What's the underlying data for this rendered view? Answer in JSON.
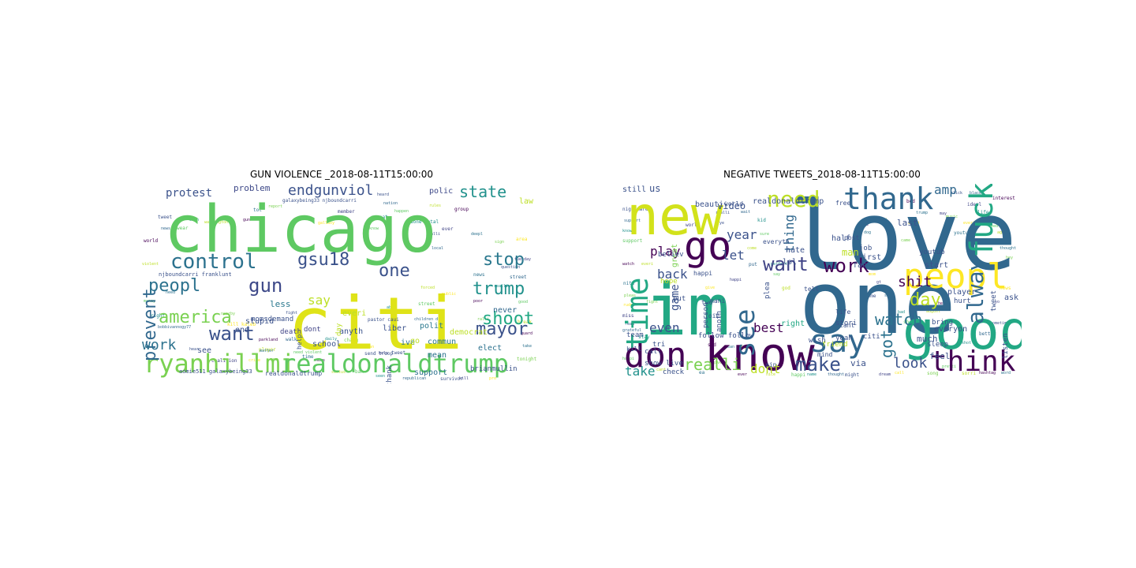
{
  "panels": [
    {
      "title": "GUN VIOLENCE _2018-08-11T15:00:00",
      "words": [
        {
          "t": "chicago",
          "c": "#5ec962"
        },
        {
          "t": "citi",
          "c": "#dfe318"
        },
        {
          "t": "ryanhillmi",
          "c": "#7ad151"
        },
        {
          "t": "realdonaldtrump",
          "c": "#5ec962"
        },
        {
          "t": "control",
          "c": "#2c728e"
        },
        {
          "t": "prevent",
          "c": "#31688e"
        },
        {
          "t": "gsu18",
          "c": "#3b528b"
        },
        {
          "t": "endgunviol",
          "c": "#3b528b"
        },
        {
          "t": "protest",
          "c": "#3b528b"
        },
        {
          "t": "state",
          "c": "#21918c"
        },
        {
          "t": "stop",
          "c": "#2a788e"
        },
        {
          "t": "trump",
          "c": "#21918c"
        },
        {
          "t": "shoot",
          "c": "#22a884"
        },
        {
          "t": "mayor",
          "c": "#3b528b"
        },
        {
          "t": "america",
          "c": "#7ad151"
        },
        {
          "t": "peopl",
          "c": "#2c728e"
        },
        {
          "t": "gun",
          "c": "#3e4989"
        },
        {
          "t": "want",
          "c": "#3b528b"
        },
        {
          "t": "work",
          "c": "#2c728e"
        },
        {
          "t": "one",
          "c": "#3b528b"
        },
        {
          "t": "say",
          "c": "#bddf26"
        },
        {
          "t": "problem",
          "c": "#3e4989"
        },
        {
          "t": "polic",
          "c": "#3e4989"
        },
        {
          "t": "law",
          "c": "#bddf26"
        },
        {
          "t": "less",
          "c": "#2a788e"
        },
        {
          "t": "stupid",
          "c": "#3b528b"
        },
        {
          "t": "dont",
          "c": "#414487"
        },
        {
          "t": "liber",
          "c": "#3b528b"
        },
        {
          "t": "commun",
          "c": "#2a788e"
        },
        {
          "t": "democrat",
          "c": "#bddf26"
        },
        {
          "t": "polit",
          "c": "#2a788e"
        },
        {
          "t": "school",
          "c": "#3b528b"
        },
        {
          "t": "anyth",
          "c": "#3b528b"
        },
        {
          "t": "mean",
          "c": "#2c728e"
        },
        {
          "t": "elect",
          "c": "#2c728e"
        },
        {
          "t": "never",
          "c": "#31688e"
        },
        {
          "t": "support",
          "c": "#2c728e"
        },
        {
          "t": "brianmullin",
          "c": "#3b528b"
        },
        {
          "t": "aomie511 galaxybeing33",
          "c": "#3b528b"
        },
        {
          "t": "realdonaldtrump",
          "c": "#3b528b"
        },
        {
          "t": "momsdemand",
          "c": "#3b528b"
        },
        {
          "t": "death",
          "c": "#414487"
        },
        {
          "t": "end",
          "c": "#3b528b"
        },
        {
          "t": "see",
          "c": "#3b528b"
        },
        {
          "t": "everi",
          "c": "#bddf26"
        },
        {
          "t": "ive",
          "c": "#2c728e"
        },
        {
          "t": "go",
          "c": "#bddf26"
        },
        {
          "t": "thank",
          "c": "#3b528b"
        },
        {
          "t": "day",
          "c": "#bddf26"
        },
        {
          "t": "help",
          "c": "#3b528b"
        },
        {
          "t": "njboundcarri franklunt",
          "c": "#3b528b"
        },
        {
          "t": "pastor caui",
          "c": "#3b528b"
        },
        {
          "t": "send troop",
          "c": "#3b528b"
        },
        {
          "t": "galaxybeing33 njboundcarri",
          "c": "#3b528b"
        }
      ]
    },
    {
      "title": "NEGATIVE TWEETS_2018-08-11T15:00:00",
      "words": [
        {
          "t": "love",
          "c": "#31688e"
        },
        {
          "t": "one",
          "c": "#31688e"
        },
        {
          "t": "new",
          "c": "#d2e21b"
        },
        {
          "t": "im",
          "c": "#22a884"
        },
        {
          "t": "know",
          "c": "#440154"
        },
        {
          "t": "don",
          "c": "#440154"
        },
        {
          "t": "good",
          "c": "#22a884"
        },
        {
          "t": "say",
          "c": "#31688e"
        },
        {
          "t": "peopl",
          "c": "#fde725"
        },
        {
          "t": "go",
          "c": "#440154"
        },
        {
          "t": "thank",
          "c": "#31688e"
        },
        {
          "t": "fuck",
          "c": "#22a884"
        },
        {
          "t": "time",
          "c": "#22a884"
        },
        {
          "t": "see",
          "c": "#31688e"
        },
        {
          "t": "think",
          "c": "#440154"
        },
        {
          "t": "alway",
          "c": "#31688e"
        },
        {
          "t": "need",
          "c": "#bddf26"
        },
        {
          "t": "want",
          "c": "#414487"
        },
        {
          "t": "work",
          "c": "#440154"
        },
        {
          "t": "watch",
          "c": "#2c728e"
        },
        {
          "t": "make",
          "c": "#3b528b"
        },
        {
          "t": "day",
          "c": "#bddf26"
        },
        {
          "t": "got",
          "c": "#2c728e"
        },
        {
          "t": "amp",
          "c": "#31688e"
        },
        {
          "t": "shit",
          "c": "#440154"
        },
        {
          "t": "look",
          "c": "#3b528b"
        },
        {
          "t": "realli",
          "c": "#7ad151"
        },
        {
          "t": "dont",
          "c": "#bddf26"
        },
        {
          "t": "take",
          "c": "#21918c"
        },
        {
          "t": "best",
          "c": "#440154"
        },
        {
          "t": "even",
          "c": "#3b528b"
        },
        {
          "t": "back",
          "c": "#3b528b"
        },
        {
          "t": "play",
          "c": "#440154"
        },
        {
          "t": "year",
          "c": "#3b528b"
        },
        {
          "t": "let",
          "c": "#3b528b"
        },
        {
          "t": "thing",
          "c": "#31688e"
        },
        {
          "t": "game",
          "c": "#3b528b"
        },
        {
          "t": "us",
          "c": "#3b528b"
        },
        {
          "t": "video",
          "c": "#3b528b"
        },
        {
          "t": "realdonaldtrump",
          "c": "#3b528b"
        },
        {
          "t": "still",
          "c": "#3b528b"
        },
        {
          "t": "great",
          "c": "#7ad151"
        },
        {
          "t": "right",
          "c": "#22a884"
        },
        {
          "t": "via",
          "c": "#3b528b"
        },
        {
          "t": "much",
          "c": "#3b528b"
        },
        {
          "t": "feel",
          "c": "#3b528b"
        },
        {
          "t": "last",
          "c": "#3b528b"
        },
        {
          "t": "man",
          "c": "#bddf26"
        },
        {
          "t": "hate",
          "c": "#3b528b"
        },
        {
          "t": "first",
          "c": "#3b528b"
        },
        {
          "t": "job",
          "c": "#3b528b"
        },
        {
          "t": "fan",
          "c": "#3b528b"
        },
        {
          "t": "lol",
          "c": "#3b528b"
        },
        {
          "t": "follow follow",
          "c": "#3b528b"
        },
        {
          "t": "check",
          "c": "#3b528b"
        },
        {
          "t": "everyon",
          "c": "#3b528b"
        },
        {
          "t": "bring",
          "c": "#3b528b"
        },
        {
          "t": "sleep",
          "c": "#3b528b"
        },
        {
          "t": "tri",
          "c": "#3b528b"
        },
        {
          "t": "call",
          "c": "#3b528b"
        },
        {
          "t": "show live",
          "c": "#3b528b"
        },
        {
          "t": "start",
          "c": "#3b528b"
        },
        {
          "t": "player",
          "c": "#3b528b"
        },
        {
          "t": "hurt",
          "c": "#3b528b"
        },
        {
          "t": "ask",
          "c": "#3b528b"
        },
        {
          "t": "listen",
          "c": "#3b528b"
        },
        {
          "t": "tweet",
          "c": "#3b528b"
        },
        {
          "t": "stori",
          "c": "#3b528b"
        },
        {
          "t": "yeah",
          "c": "#3b528b"
        },
        {
          "t": "citi",
          "c": "#3b528b"
        },
        {
          "t": "friend",
          "c": "#bddf26"
        },
        {
          "t": "wish",
          "c": "#3b528b"
        },
        {
          "t": "cant",
          "c": "#3b528b"
        },
        {
          "t": "life",
          "c": "#3b528b"
        },
        {
          "t": "mind",
          "c": "#3b528b"
        },
        {
          "t": "hope",
          "c": "#bddf26"
        },
        {
          "t": "put",
          "c": "#3b528b"
        },
        {
          "t": "anoth",
          "c": "#3b528b"
        },
        {
          "t": "person",
          "c": "#3b528b"
        },
        {
          "t": "youtub",
          "c": "#3b528b"
        },
        {
          "t": "half",
          "c": "#3b528b"
        },
        {
          "t": "free",
          "c": "#3b528b"
        },
        {
          "t": "mani",
          "c": "#3b528b"
        },
        {
          "t": "beauti",
          "c": "#3b528b"
        },
        {
          "t": "world",
          "c": "#3b528b"
        },
        {
          "t": "believ",
          "c": "#3b528b"
        },
        {
          "t": "team",
          "c": "#3b528b"
        },
        {
          "t": "kill",
          "c": "#3b528b"
        },
        {
          "t": "ain",
          "c": "#3b528b"
        },
        {
          "t": "plea",
          "c": "#3b528b"
        },
        {
          "t": "tell",
          "c": "#3b528b"
        },
        {
          "t": "two",
          "c": "#3b528b"
        },
        {
          "t": "join",
          "c": "#3b528b"
        },
        {
          "t": "happi",
          "c": "#3b528b"
        },
        {
          "t": "everyth",
          "c": "#3b528b"
        },
        {
          "t": "post",
          "c": "#3b528b"
        }
      ]
    }
  ]
}
